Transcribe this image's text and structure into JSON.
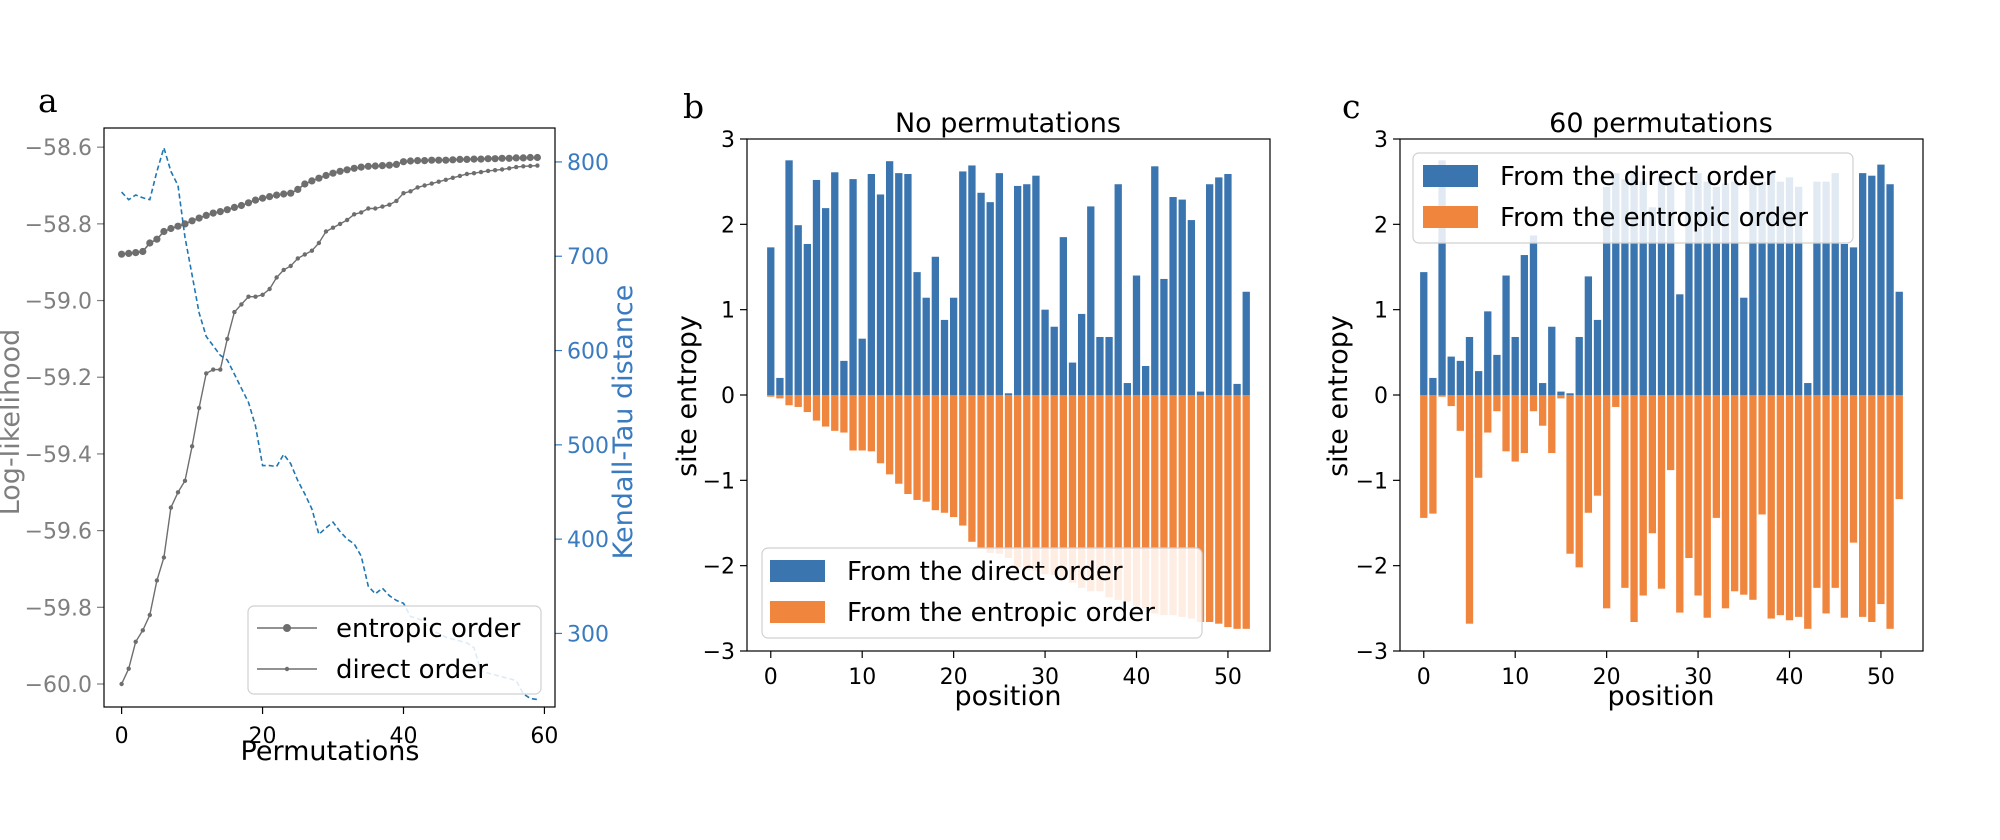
{
  "chart_data": [
    {
      "panel": "a",
      "type": "line",
      "title": "",
      "xlabel": "Permutations",
      "ylabel": "Log-likelihood",
      "y2label": "Kendall-Tau distance",
      "xlim": [
        -2.5,
        61.5
      ],
      "ylim": [
        -60.06,
        -58.55
      ],
      "y2lim": [
        222,
        836
      ],
      "x_ticks": [
        0,
        20,
        40,
        60
      ],
      "y_ticks": [
        -58.6,
        -58.8,
        -59.0,
        -59.2,
        -59.4,
        -59.6,
        -59.8,
        -60.0
      ],
      "y_tick_labels": [
        "−58.6",
        "−58.8",
        "−59.0",
        "−59.2",
        "−59.4",
        "−59.6",
        "−59.8",
        "−60.0"
      ],
      "y2_ticks": [
        800,
        700,
        600,
        500,
        400,
        300
      ],
      "legend_position": "lower-right",
      "colors": {
        "likelihood": "#6e6e6e",
        "kendall": "#1f77b4",
        "axis_left": "#7f7f7f",
        "axis_right": "#3a7bbf"
      },
      "series": [
        {
          "name": "entropic order",
          "axis": "left",
          "values": [
            -58.879,
            -58.877,
            -58.875,
            -58.872,
            -58.85,
            -58.84,
            -58.82,
            -58.812,
            -58.806,
            -58.8,
            -58.792,
            -58.785,
            -58.778,
            -58.772,
            -58.768,
            -58.763,
            -58.757,
            -58.752,
            -58.745,
            -58.738,
            -58.733,
            -58.729,
            -58.725,
            -58.722,
            -58.72,
            -58.71,
            -58.696,
            -58.688,
            -58.681,
            -58.674,
            -58.668,
            -58.663,
            -58.659,
            -58.655,
            -58.652,
            -58.65,
            -58.649,
            -58.648,
            -58.647,
            -58.645,
            -58.638,
            -58.636,
            -58.635,
            -58.635,
            -58.634,
            -58.634,
            -58.634,
            -58.633,
            -58.632,
            -58.632,
            -58.631,
            -58.631,
            -58.63,
            -58.63,
            -58.629,
            -58.629,
            -58.628,
            -58.628,
            -58.627,
            -58.627
          ]
        },
        {
          "name": "direct order",
          "axis": "left",
          "values": [
            -60.0,
            -59.96,
            -59.89,
            -59.86,
            -59.82,
            -59.73,
            -59.67,
            -59.54,
            -59.5,
            -59.47,
            -59.38,
            -59.28,
            -59.19,
            -59.18,
            -59.18,
            -59.1,
            -59.03,
            -59.01,
            -58.99,
            -58.99,
            -58.985,
            -58.97,
            -58.94,
            -58.92,
            -58.91,
            -58.89,
            -58.88,
            -58.87,
            -58.85,
            -58.82,
            -58.81,
            -58.8,
            -58.79,
            -58.775,
            -58.77,
            -58.76,
            -58.76,
            -58.755,
            -58.75,
            -58.74,
            -58.72,
            -58.715,
            -58.705,
            -58.7,
            -58.695,
            -58.69,
            -58.685,
            -58.68,
            -58.675,
            -58.67,
            -58.668,
            -58.665,
            -58.662,
            -58.66,
            -58.658,
            -58.655,
            -58.652,
            -58.65,
            -58.649,
            -58.648
          ]
        },
        {
          "name": "Kendall-Tau distance",
          "axis": "right",
          "values": [
            768,
            760,
            765,
            762,
            760,
            790,
            815,
            790,
            775,
            720,
            680,
            640,
            615,
            605,
            595,
            590,
            575,
            560,
            545,
            520,
            478,
            478,
            477,
            490,
            480,
            462,
            448,
            432,
            405,
            412,
            418,
            408,
            400,
            395,
            382,
            350,
            342,
            348,
            340,
            335,
            332,
            318,
            316,
            312,
            302,
            300,
            296,
            294,
            292,
            290,
            285,
            260,
            258,
            256,
            254,
            252,
            250,
            236,
            231,
            230
          ]
        }
      ]
    },
    {
      "panel": "b",
      "type": "bar",
      "title": "No permutations",
      "xlabel": "position",
      "ylabel": "site entropy",
      "xlim": [
        -2.6,
        54.6
      ],
      "ylim": [
        -3.0,
        3.0
      ],
      "x_ticks": [
        0,
        10,
        20,
        30,
        40,
        50
      ],
      "y_ticks": [
        3,
        2,
        1,
        0,
        -1,
        -2,
        -3
      ],
      "y_tick_labels": [
        "3",
        "2",
        "1",
        "0",
        "−1",
        "−2",
        "−3"
      ],
      "legend_position": "lower-left",
      "colors": {
        "direct": "#3a75af",
        "entropic": "#f0853d"
      },
      "series": [
        {
          "name": "From the direct order",
          "values": [
            1.73,
            0.2,
            2.75,
            1.99,
            1.77,
            2.52,
            2.19,
            2.61,
            0.4,
            2.53,
            0.66,
            2.59,
            2.35,
            2.74,
            2.6,
            2.59,
            1.44,
            1.14,
            1.62,
            0.88,
            1.14,
            2.62,
            2.69,
            2.37,
            2.26,
            2.6,
            0.02,
            2.45,
            2.47,
            2.57,
            1.0,
            0.8,
            1.85,
            0.38,
            0.95,
            2.21,
            0.68,
            0.68,
            2.47,
            0.14,
            1.4,
            0.34,
            2.68,
            1.36,
            2.32,
            2.29,
            2.05,
            0.04,
            2.47,
            2.55,
            2.59,
            0.13,
            1.21
          ]
        },
        {
          "name": "From the entropic order",
          "values": [
            -0.02,
            -0.04,
            -0.12,
            -0.14,
            -0.2,
            -0.3,
            -0.37,
            -0.42,
            -0.44,
            -0.65,
            -0.65,
            -0.66,
            -0.8,
            -0.93,
            -1.04,
            -1.16,
            -1.23,
            -1.25,
            -1.35,
            -1.38,
            -1.43,
            -1.53,
            -1.72,
            -1.8,
            -1.85,
            -1.86,
            -1.91,
            -2.02,
            -2.05,
            -2.06,
            -2.1,
            -2.11,
            -2.15,
            -2.2,
            -2.26,
            -2.3,
            -2.3,
            -2.37,
            -2.4,
            -2.42,
            -2.47,
            -2.5,
            -2.56,
            -2.58,
            -2.58,
            -2.6,
            -2.62,
            -2.66,
            -2.66,
            -2.68,
            -2.72,
            -2.74,
            -2.74
          ]
        }
      ]
    },
    {
      "panel": "c",
      "type": "bar",
      "title": "60 permutations",
      "xlabel": "position",
      "ylabel": "site entropy",
      "xlim": [
        -2.6,
        54.6
      ],
      "ylim": [
        -3.0,
        3.0
      ],
      "x_ticks": [
        0,
        10,
        20,
        30,
        40,
        50
      ],
      "y_ticks": [
        3,
        2,
        1,
        0,
        -1,
        -2,
        -3
      ],
      "y_tick_labels": [
        "3",
        "2",
        "1",
        "0",
        "−1",
        "−2",
        "−3"
      ],
      "legend_position": "top-left",
      "colors": {
        "direct": "#3a75af",
        "entropic": "#f0853d"
      },
      "series": [
        {
          "name": "From the direct order",
          "values": [
            1.44,
            0.2,
            2.75,
            0.45,
            0.4,
            0.68,
            0.28,
            0.98,
            0.47,
            1.4,
            0.68,
            1.64,
            1.87,
            0.14,
            0.8,
            0.04,
            0.02,
            0.68,
            1.39,
            0.88,
            2.44,
            2.6,
            2.53,
            2.61,
            2.5,
            2.2,
            2.59,
            2.5,
            1.18,
            2.5,
            2.6,
            2.5,
            2.44,
            2.48,
            2.5,
            1.14,
            2.5,
            2.5,
            2.6,
            2.5,
            2.55,
            2.44,
            0.14,
            2.5,
            2.5,
            2.6,
            1.77,
            1.73,
            2.6,
            2.57,
            2.7,
            2.47,
            1.21
          ]
        },
        {
          "name": "From the entropic order",
          "values": [
            -1.44,
            -1.39,
            -0.02,
            -0.13,
            -0.42,
            -2.68,
            -0.97,
            -0.44,
            -0.19,
            -0.66,
            -0.78,
            -0.68,
            -0.19,
            -0.36,
            -0.68,
            -0.04,
            -1.86,
            -2.02,
            -1.38,
            -1.18,
            -2.5,
            -0.14,
            -2.26,
            -2.66,
            -2.35,
            -1.62,
            -2.27,
            -0.88,
            -2.55,
            -1.91,
            -2.35,
            -2.61,
            -1.44,
            -2.5,
            -2.3,
            -2.34,
            -2.4,
            -1.4,
            -2.62,
            -2.58,
            -2.64,
            -2.6,
            -2.74,
            -2.26,
            -2.56,
            -2.26,
            -2.61,
            -1.73,
            -2.6,
            -2.66,
            -2.45,
            -2.74,
            -1.22
          ]
        }
      ]
    }
  ],
  "panel_labels": [
    "a",
    "b",
    "c"
  ]
}
